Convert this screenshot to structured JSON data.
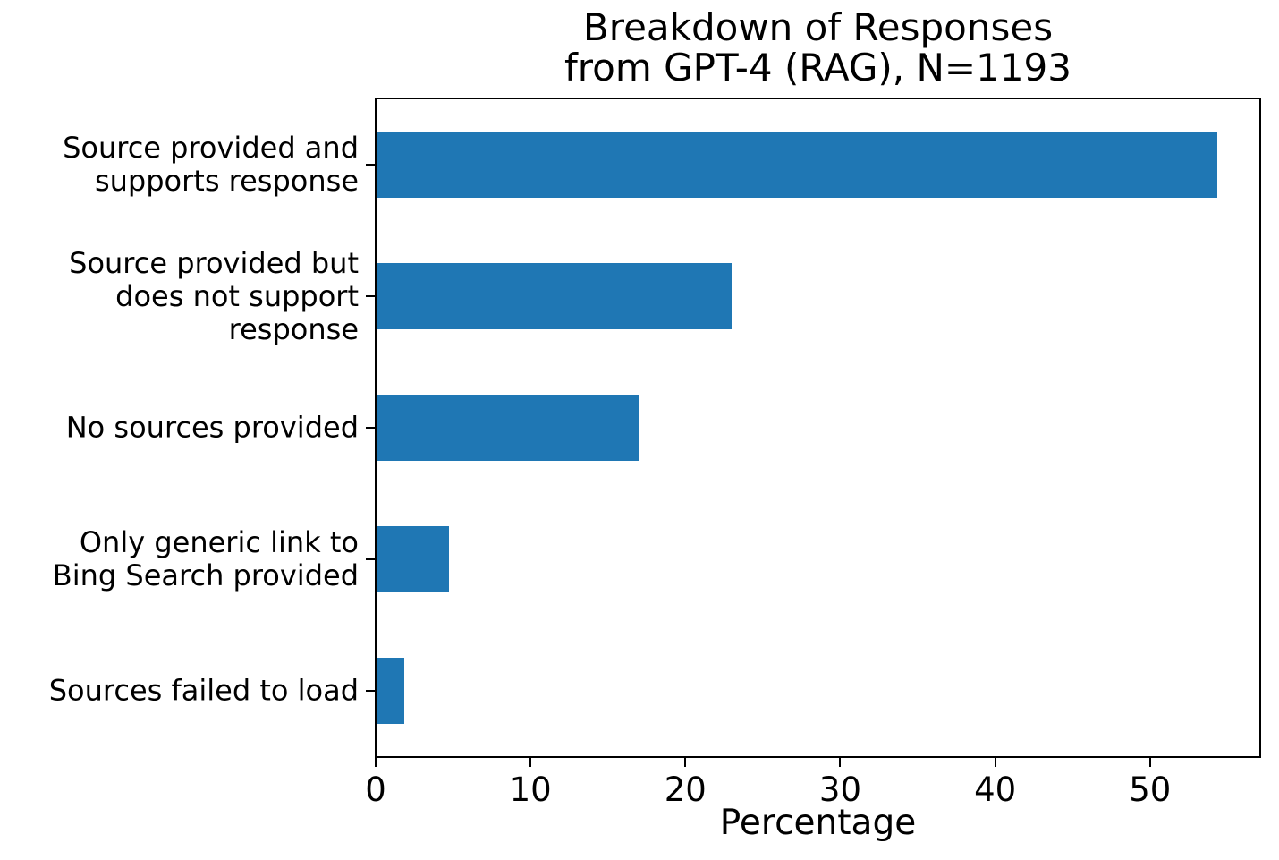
{
  "chart_data": {
    "type": "bar",
    "orientation": "horizontal",
    "title": "Breakdown of Responses\nfrom GPT-4 (RAG), N=1193",
    "xlabel": "Percentage",
    "ylabel": "",
    "categories": [
      "Source provided and\nsupports response",
      "Source provided but\ndoes not support response",
      "No sources provided",
      "Only generic link to\nBing Search provided",
      "Sources failed to load"
    ],
    "values": [
      54.3,
      22.9,
      16.9,
      4.7,
      1.8
    ],
    "n_total": "N=1193",
    "xlim": [
      0,
      57
    ],
    "xticks": [
      0,
      10,
      20,
      30,
      40,
      50
    ],
    "bar_color": "#1f77b4",
    "spine_color": "#000000",
    "grid": false,
    "legend": null
  }
}
